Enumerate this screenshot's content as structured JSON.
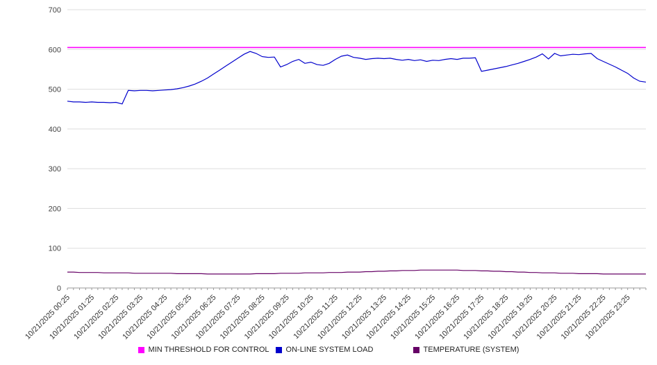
{
  "chart_data": {
    "type": "line",
    "title": "",
    "xlabel": "",
    "ylabel": "",
    "ylim": [
      0,
      700
    ],
    "yticks": [
      0,
      100,
      200,
      300,
      400,
      500,
      600,
      700
    ],
    "grid": "horizontal",
    "legend_position": "bottom",
    "x_labels": [
      "10/21/2025 00:25",
      "10/21/2025 01:25",
      "10/21/2025 02:25",
      "10/21/2025 03:25",
      "10/21/2025 04:25",
      "10/21/2025 05:25",
      "10/21/2025 06:25",
      "10/21/2025 07:25",
      "10/21/2025 08:25",
      "10/21/2025 09:25",
      "10/21/2025 10:25",
      "10/21/2025 11:25",
      "10/21/2025 12:25",
      "10/21/2025 13:25",
      "10/21/2025 14:25",
      "10/21/2025 15:25",
      "10/21/2025 16:25",
      "10/21/2025 17:25",
      "10/21/2025 18:25",
      "10/21/2025 19:25",
      "10/21/2025 20:25",
      "10/21/2025 21:25",
      "10/21/2025 22:25",
      "10/21/2025 23:25"
    ],
    "series": [
      {
        "name": "MIN THRESHOLD FOR CONTROL",
        "color": "#ff00ff",
        "values": [
          605,
          605
        ]
      },
      {
        "name": "ON-LINE SYSTEM LOAD",
        "color": "#0000cc",
        "values": [
          470,
          468,
          468,
          467,
          468,
          467,
          467,
          466,
          467,
          463,
          497,
          496,
          497,
          497,
          496,
          497,
          498,
          499,
          501,
          504,
          508,
          513,
          520,
          528,
          538,
          548,
          558,
          568,
          578,
          588,
          595,
          590,
          582,
          580,
          581,
          556,
          562,
          570,
          575,
          565,
          568,
          562,
          560,
          565,
          575,
          583,
          586,
          580,
          578,
          575,
          577,
          578,
          577,
          578,
          575,
          573,
          575,
          572,
          574,
          570,
          573,
          572,
          575,
          577,
          575,
          578,
          578,
          579,
          545,
          548,
          551,
          554,
          557,
          561,
          565,
          570,
          575,
          581,
          589,
          576,
          590,
          584,
          586,
          588,
          587,
          589,
          590,
          577,
          570,
          563,
          556,
          548,
          540,
          528,
          520,
          518
        ]
      },
      {
        "name": "TEMPERATURE (SYSTEM)",
        "color": "#660066",
        "values": [
          40,
          40,
          39,
          39,
          39,
          39,
          38,
          38,
          38,
          38,
          38,
          37,
          37,
          37,
          37,
          37,
          37,
          37,
          36,
          36,
          36,
          36,
          36,
          35,
          35,
          35,
          35,
          35,
          35,
          35,
          35,
          36,
          36,
          36,
          36,
          37,
          37,
          37,
          37,
          38,
          38,
          38,
          38,
          39,
          39,
          39,
          40,
          40,
          40,
          41,
          41,
          42,
          42,
          43,
          43,
          44,
          44,
          44,
          45,
          45,
          45,
          45,
          45,
          45,
          45,
          44,
          44,
          44,
          43,
          43,
          42,
          42,
          41,
          41,
          40,
          40,
          39,
          39,
          38,
          38,
          38,
          37,
          37,
          37,
          36,
          36,
          36,
          36,
          35,
          35,
          35,
          35,
          35,
          35,
          35,
          35
        ]
      }
    ]
  }
}
